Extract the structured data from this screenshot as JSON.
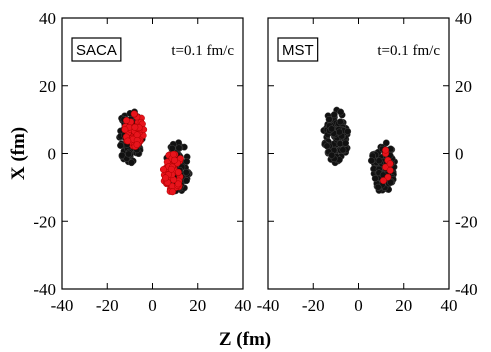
{
  "chart_data": [
    {
      "type": "scatter",
      "label": "SACA",
      "time_label": "t=0.1 fm/c",
      "xlim": [
        -40,
        40
      ],
      "ylim": [
        -40,
        40
      ],
      "xticks": [
        "-40",
        "-20",
        "0",
        "20",
        "40"
      ],
      "yticks": [
        "40",
        "20",
        "0",
        "-20",
        "-40"
      ],
      "y_axis_side": "left",
      "ylabel": "X (fm)",
      "series": [
        {
          "color": "#111111",
          "clusters": [
            {
              "cx": -10,
              "cy": 5,
              "rx": 5.5,
              "ry": 8,
              "n": 90
            },
            {
              "cx": 11,
              "cy": -4,
              "rx": 5.5,
              "ry": 7.5,
              "n": 90
            }
          ]
        },
        {
          "color": "#e8141c",
          "clusters": [
            {
              "cx": -8,
              "cy": 7,
              "rx": 4.5,
              "ry": 5,
              "n": 60
            },
            {
              "cx": 9,
              "cy": -5,
              "rx": 4.5,
              "ry": 6.5,
              "n": 55
            }
          ]
        }
      ]
    },
    {
      "type": "scatter",
      "label": "MST",
      "time_label": "t=0.1 fm/c",
      "xlim": [
        -40,
        40
      ],
      "ylim": [
        -40,
        40
      ],
      "xticks": [
        "-40",
        "-20",
        "0",
        "20",
        "40"
      ],
      "yticks": [
        "40",
        "20",
        "0",
        "-20",
        "-40"
      ],
      "y_axis_side": "right",
      "series": [
        {
          "color": "#111111",
          "clusters": [
            {
              "cx": -10,
              "cy": 5,
              "rx": 5.5,
              "ry": 8,
              "n": 110
            },
            {
              "cx": 11,
              "cy": -4,
              "rx": 5.5,
              "ry": 7.5,
              "n": 110
            }
          ]
        },
        {
          "color": "#e8141c",
          "points": [
            [
              12,
              0
            ],
            [
              13,
              -2
            ],
            [
              12,
              -4
            ],
            [
              14,
              -5
            ],
            [
              13,
              -7
            ],
            [
              11,
              -8
            ],
            [
              14,
              -3
            ],
            [
              12,
              1
            ]
          ]
        }
      ]
    }
  ],
  "xlabel": "Z (fm)"
}
